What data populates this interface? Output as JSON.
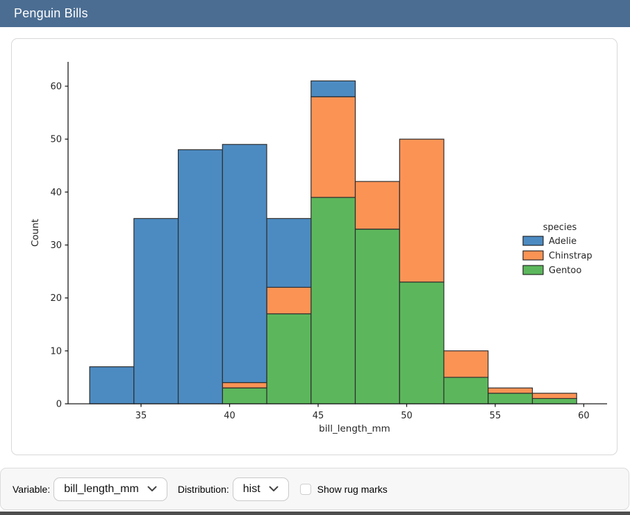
{
  "header": {
    "title": "Penguin Bills",
    "bg_color": "#4b6d92"
  },
  "chart_data": {
    "type": "bar",
    "subtype": "stacked-histogram",
    "title": "",
    "xlabel": "bill_length_mm",
    "ylabel": "Count",
    "bin_edges": [
      32.1,
      34.6,
      37.1,
      39.6,
      42.1,
      44.6,
      47.1,
      49.6,
      52.1,
      54.6,
      57.1,
      59.6
    ],
    "series": [
      {
        "name": "Adelie",
        "color": "#4c8bc2",
        "values": [
          7,
          35,
          48,
          45,
          13,
          3,
          0,
          0,
          0,
          0,
          0
        ]
      },
      {
        "name": "Chinstrap",
        "color": "#fb9355",
        "values": [
          0,
          0,
          0,
          1,
          5,
          19,
          9,
          27,
          5,
          1,
          1
        ]
      },
      {
        "name": "Gentoo",
        "color": "#5cb75c",
        "values": [
          0,
          0,
          0,
          3,
          17,
          39,
          33,
          23,
          5,
          2,
          1
        ]
      }
    ],
    "stack_bottom_to_top": [
      "Gentoo",
      "Chinstrap",
      "Adelie"
    ],
    "bar_totals": [
      7,
      35,
      48,
      49,
      35,
      61,
      42,
      50,
      10,
      3,
      2
    ],
    "x_ticks": [
      35,
      40,
      45,
      50,
      55,
      60
    ],
    "y_ticks": [
      0,
      10,
      20,
      30,
      40,
      50,
      60
    ],
    "xlim": [
      30.88,
      60.65
    ],
    "ylim": [
      0,
      64.6
    ],
    "grid": false,
    "edge_color": "#2e2e2e",
    "axis_color": "#1a1a1a",
    "text_color": "#262626",
    "legend": {
      "title": "species",
      "position": "center-right",
      "entries": [
        {
          "label": "Adelie",
          "color": "#4c8bc2"
        },
        {
          "label": "Chinstrap",
          "color": "#fb9355"
        },
        {
          "label": "Gentoo",
          "color": "#5cb75c"
        }
      ]
    }
  },
  "controls": {
    "variable_label": "Variable:",
    "variable_value": "bill_length_mm",
    "distribution_label": "Distribution:",
    "distribution_value": "hist",
    "rug_label": "Show rug marks",
    "rug_checked": false
  }
}
